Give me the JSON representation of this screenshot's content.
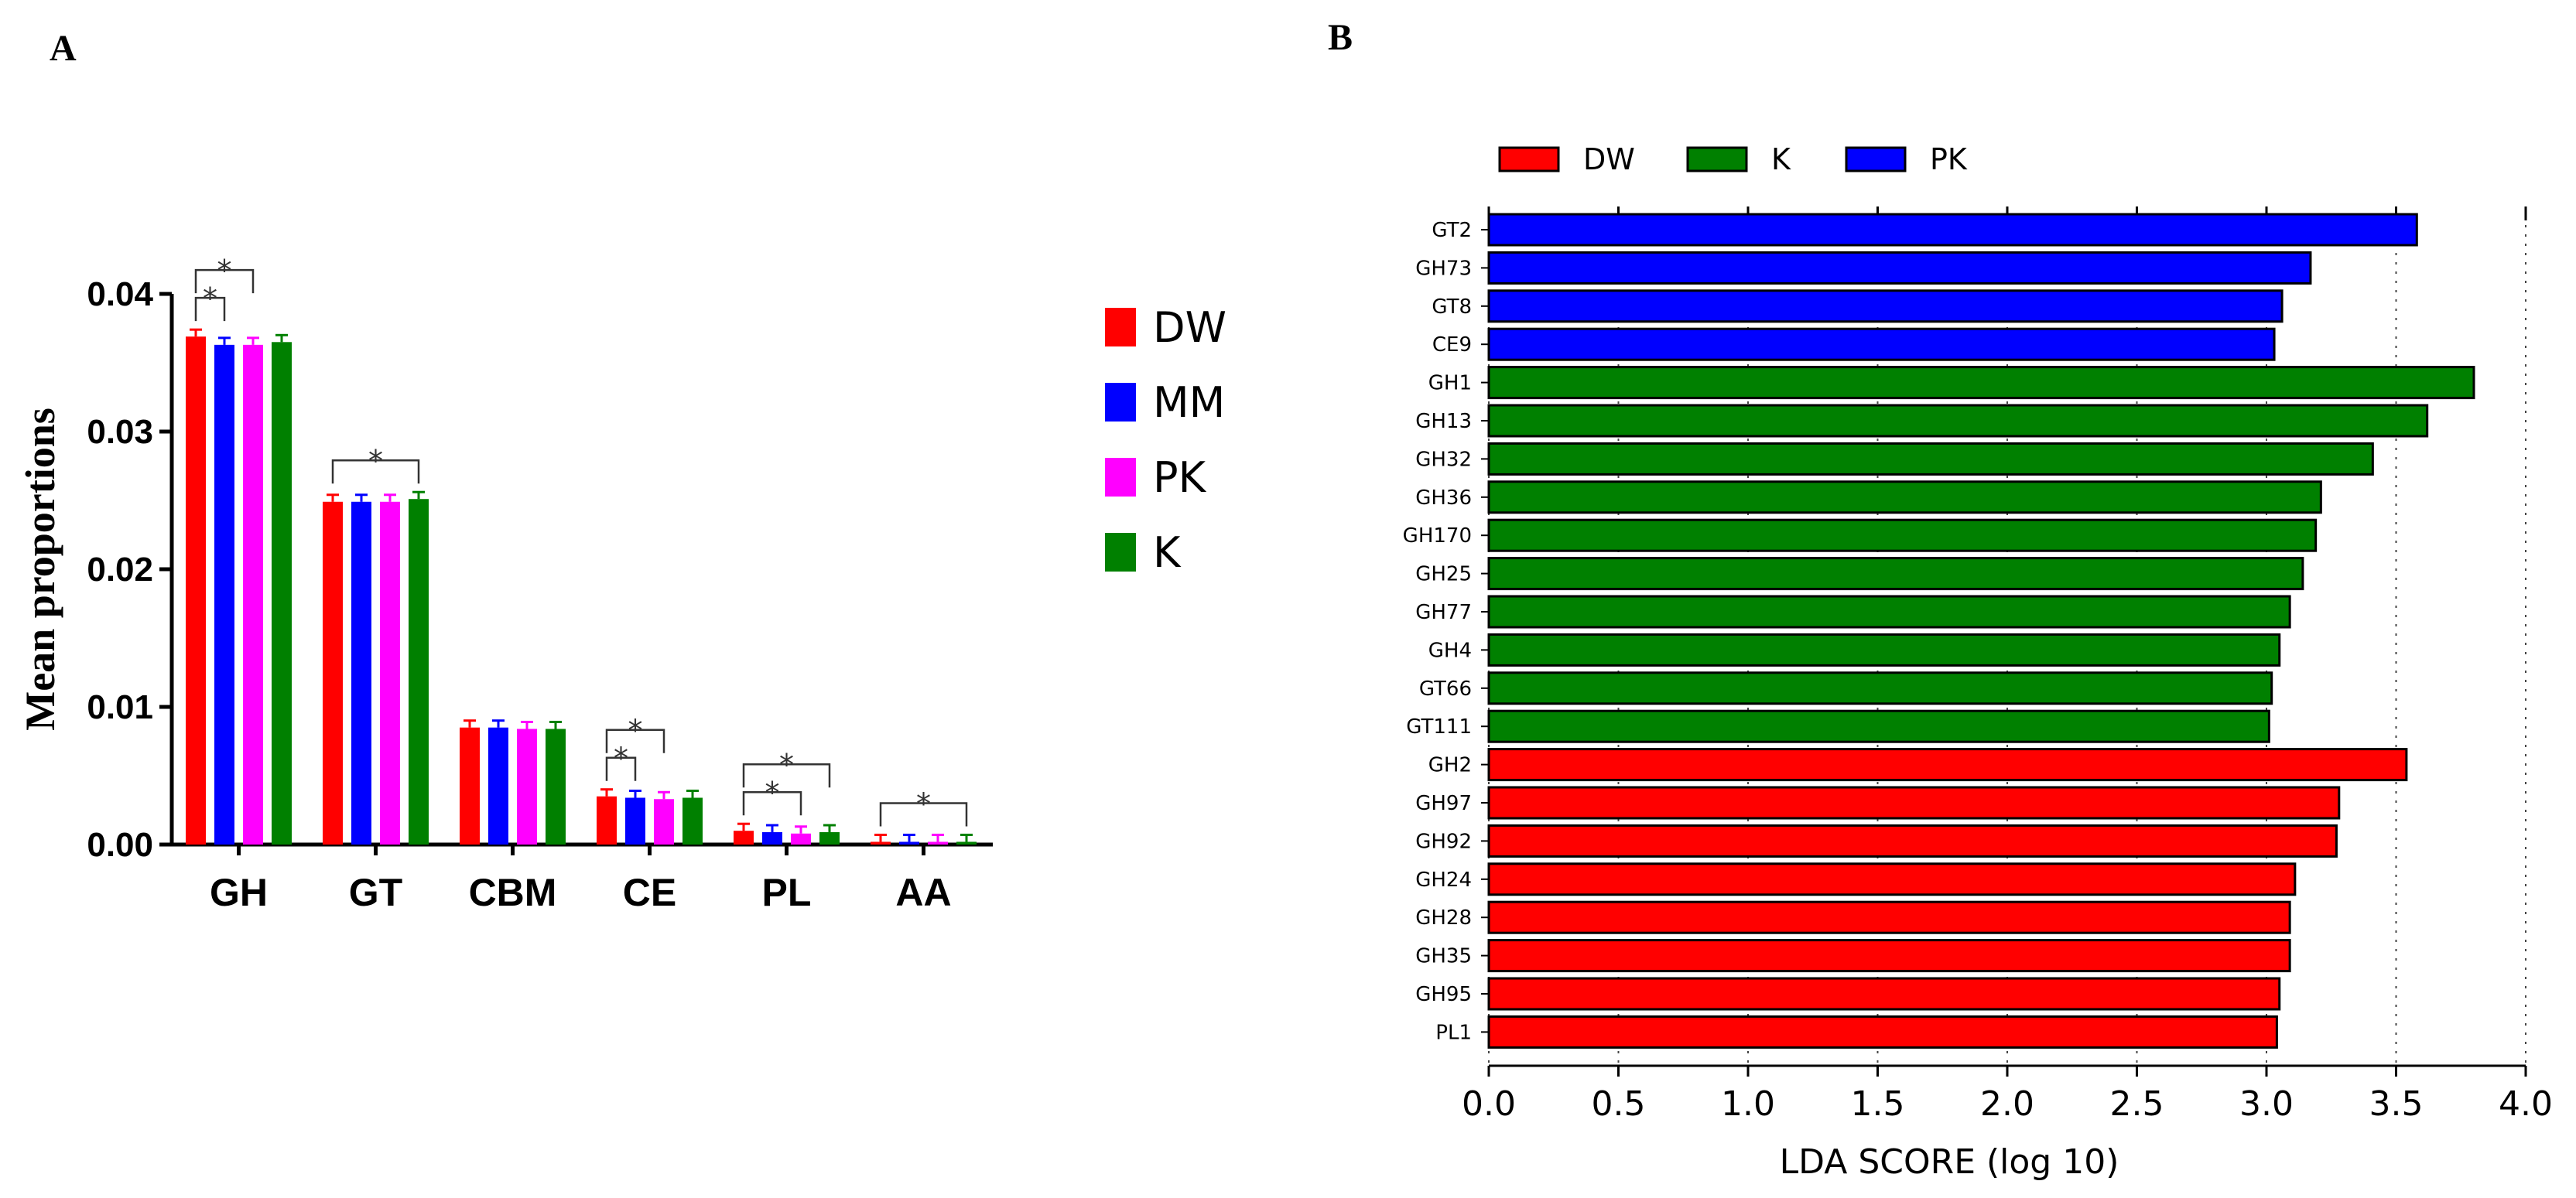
{
  "chart_data": [
    {
      "panel": "A",
      "type": "bar",
      "ylabel": "Mean proportions",
      "xlabel": "",
      "ylim": [
        0,
        0.04
      ],
      "yticks": [
        "0.00",
        "0.01",
        "0.02",
        "0.03",
        "0.04"
      ],
      "categories": [
        "GH",
        "GT",
        "CBM",
        "CE",
        "PL",
        "AA"
      ],
      "series": [
        {
          "name": "DW",
          "color": "#ff0000",
          "values": [
            0.0369,
            0.0249,
            0.0085,
            0.0035,
            0.001,
            0.0002
          ]
        },
        {
          "name": "MM",
          "color": "#0000ff",
          "values": [
            0.0363,
            0.0249,
            0.0085,
            0.0034,
            0.0009,
            0.0002
          ]
        },
        {
          "name": "PK",
          "color": "#ff00ff",
          "values": [
            0.0363,
            0.0249,
            0.0084,
            0.0033,
            0.0008,
            0.0002
          ]
        },
        {
          "name": "K",
          "color": "#008000",
          "values": [
            0.0365,
            0.0251,
            0.0084,
            0.0034,
            0.0009,
            0.0002
          ]
        }
      ],
      "legend": [
        "DW",
        "MM",
        "PK",
        "K"
      ],
      "significance": [
        {
          "category": "GH",
          "from": 0,
          "to": 1,
          "label": "*"
        },
        {
          "category": "GH",
          "from": 0,
          "to": 2,
          "label": "*"
        },
        {
          "category": "GT",
          "from": 0,
          "to": 3,
          "label": "*"
        },
        {
          "category": "CE",
          "from": 0,
          "to": 1,
          "label": "*"
        },
        {
          "category": "CE",
          "from": 0,
          "to": 2,
          "label": "*"
        },
        {
          "category": "PL",
          "from": 0,
          "to": 2,
          "label": "*"
        },
        {
          "category": "PL",
          "from": 0,
          "to": 3,
          "label": "*"
        },
        {
          "category": "AA",
          "from": 0,
          "to": 3,
          "label": "*"
        }
      ]
    },
    {
      "panel": "B",
      "type": "bar",
      "orientation": "horizontal",
      "xlabel": "LDA SCORE (log 10)",
      "xlim": [
        0,
        4
      ],
      "xticks": [
        "0.0",
        "0.5",
        "1.0",
        "1.5",
        "2.0",
        "2.5",
        "3.0",
        "3.5",
        "4.0"
      ],
      "legend": [
        {
          "name": "DW",
          "color": "#ff0000"
        },
        {
          "name": "K",
          "color": "#008000"
        },
        {
          "name": "PK",
          "color": "#0000ff"
        }
      ],
      "bars": [
        {
          "label": "GT2",
          "group": "PK",
          "value": 3.58
        },
        {
          "label": "GH73",
          "group": "PK",
          "value": 3.17
        },
        {
          "label": "GT8",
          "group": "PK",
          "value": 3.06
        },
        {
          "label": "CE9",
          "group": "PK",
          "value": 3.03
        },
        {
          "label": "GH1",
          "group": "K",
          "value": 3.8
        },
        {
          "label": "GH13",
          "group": "K",
          "value": 3.62
        },
        {
          "label": "GH32",
          "group": "K",
          "value": 3.41
        },
        {
          "label": "GH36",
          "group": "K",
          "value": 3.21
        },
        {
          "label": "GH170",
          "group": "K",
          "value": 3.19
        },
        {
          "label": "GH25",
          "group": "K",
          "value": 3.14
        },
        {
          "label": "GH77",
          "group": "K",
          "value": 3.09
        },
        {
          "label": "GH4",
          "group": "K",
          "value": 3.05
        },
        {
          "label": "GT66",
          "group": "K",
          "value": 3.02
        },
        {
          "label": "GT111",
          "group": "K",
          "value": 3.01
        },
        {
          "label": "GH2",
          "group": "DW",
          "value": 3.54
        },
        {
          "label": "GH97",
          "group": "DW",
          "value": 3.28
        },
        {
          "label": "GH92",
          "group": "DW",
          "value": 3.27
        },
        {
          "label": "GH24",
          "group": "DW",
          "value": 3.11
        },
        {
          "label": "GH28",
          "group": "DW",
          "value": 3.09
        },
        {
          "label": "GH35",
          "group": "DW",
          "value": 3.09
        },
        {
          "label": "GH95",
          "group": "DW",
          "value": 3.05
        },
        {
          "label": "PL1",
          "group": "DW",
          "value": 3.04
        }
      ]
    }
  ],
  "panel_labels": {
    "a": "A",
    "b": "B"
  }
}
